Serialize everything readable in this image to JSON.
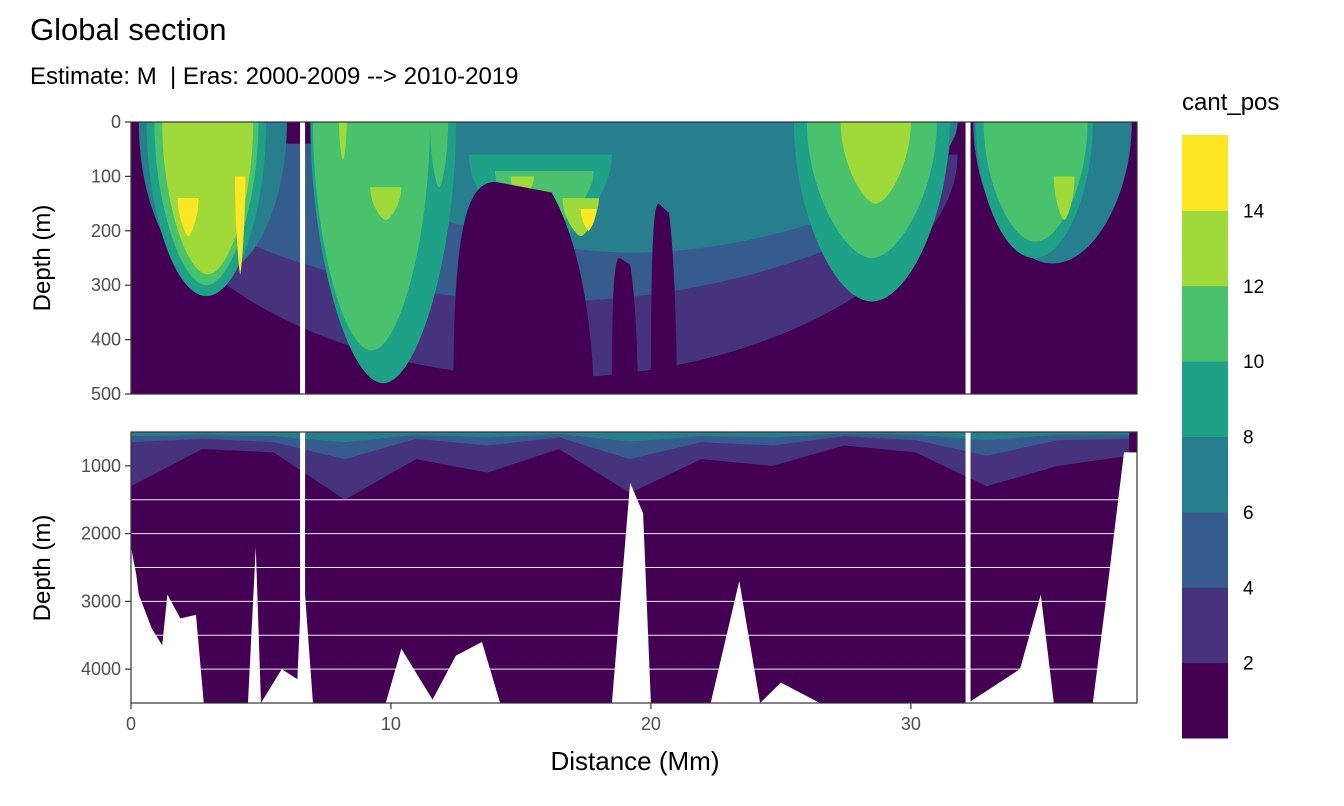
{
  "chart_data": {
    "type": "heatmap",
    "title": "Global section",
    "subtitle": "Estimate: M  | Eras: 2000-2009 --> 2010-2019",
    "xlabel": "Distance (Mm)",
    "xlim": [
      0,
      38.7
    ],
    "x_ticks": [
      0,
      10,
      20,
      30
    ],
    "x_tick_labels": [
      "0",
      "10",
      "20",
      "30"
    ],
    "panels": [
      {
        "name": "upper",
        "ylabel": "Depth (m)",
        "ylim": [
          0,
          500
        ],
        "y_ticks": [
          0,
          100,
          200,
          300,
          400,
          500
        ],
        "y_tick_labels": [
          "0",
          "100",
          "200",
          "300",
          "400",
          "500"
        ],
        "grid": false
      },
      {
        "name": "lower",
        "ylabel": "Depth (m)",
        "ylim": [
          500,
          4500
        ],
        "y_ticks": [
          1000,
          2000,
          3000,
          4000
        ],
        "y_tick_labels": [
          "1000",
          "2000",
          "3000",
          "4000"
        ],
        "grid": true
      }
    ],
    "legend": {
      "title": "cant_pos",
      "position": "right",
      "breaks": [
        2,
        4,
        6,
        8,
        10,
        12,
        14
      ],
      "break_labels": [
        "2",
        "4",
        "6",
        "8",
        "10",
        "12",
        "14"
      ],
      "bins": [
        {
          "from": 0,
          "to": 2,
          "color": "#440154"
        },
        {
          "from": 2,
          "to": 4,
          "color": "#46337E"
        },
        {
          "from": 4,
          "to": 6,
          "color": "#365C8D"
        },
        {
          "from": 6,
          "to": 8,
          "color": "#277F8E"
        },
        {
          "from": 8,
          "to": 10,
          "color": "#1FA187"
        },
        {
          "from": 10,
          "to": 12,
          "color": "#4AC16D"
        },
        {
          "from": 12,
          "to": 14,
          "color": "#9FDA3A"
        },
        {
          "from": 14,
          "to": 16,
          "color": "#FDE725"
        }
      ]
    },
    "gap_lines_distance_mm": [
      6.6,
      32.2
    ],
    "upper_field": {
      "background_bin": 0,
      "bodies": [
        {
          "bin": 1,
          "x": [
            0.4,
            31.8
          ],
          "top": 60,
          "bottom": 470,
          "extend": 0.9
        },
        {
          "bin": 2,
          "x": [
            0.4,
            31.5
          ],
          "top": 40,
          "bottom": 330,
          "extend": 0.8
        },
        {
          "bin": 3,
          "x": [
            0.3,
            6.0
          ],
          "top": 0,
          "bottom": 280,
          "extend": 1.0
        },
        {
          "bin": 3,
          "x": [
            6.9,
            31.8
          ],
          "top": 0,
          "bottom": 240,
          "extend": 0.7
        },
        {
          "bin": 3,
          "x": [
            32.4,
            38.5
          ],
          "top": 0,
          "bottom": 260,
          "extend": 0.9
        },
        {
          "bin": 4,
          "x": [
            0.6,
            5.2
          ],
          "top": 0,
          "bottom": 320,
          "extend": 0.9
        },
        {
          "bin": 4,
          "x": [
            6.9,
            12.5
          ],
          "top": 0,
          "bottom": 480,
          "extend": 0.8
        },
        {
          "bin": 4,
          "x": [
            13.0,
            18.5
          ],
          "top": 60,
          "bottom": 230,
          "extend": 0.5
        },
        {
          "bin": 4,
          "x": [
            25.5,
            31.5
          ],
          "top": 0,
          "bottom": 330,
          "extend": 0.8
        },
        {
          "bin": 4,
          "x": [
            32.5,
            37.0
          ],
          "top": 0,
          "bottom": 250,
          "extend": 0.9
        },
        {
          "bin": 5,
          "x": [
            0.9,
            4.9
          ],
          "top": 0,
          "bottom": 300,
          "extend": 0.8
        },
        {
          "bin": 5,
          "x": [
            7.0,
            11.5
          ],
          "top": 0,
          "bottom": 420,
          "extend": 0.8
        },
        {
          "bin": 5,
          "x": [
            11.5,
            12.2
          ],
          "top": 0,
          "bottom": 120,
          "extend": 0.6
        },
        {
          "bin": 5,
          "x": [
            14.0,
            17.8
          ],
          "top": 90,
          "bottom": 200,
          "extend": 0.4
        },
        {
          "bin": 5,
          "x": [
            26.0,
            31.0
          ],
          "top": 0,
          "bottom": 250,
          "extend": 0.7
        },
        {
          "bin": 5,
          "x": [
            32.8,
            36.8
          ],
          "top": 0,
          "bottom": 220,
          "extend": 0.8
        },
        {
          "bin": 6,
          "x": [
            1.2,
            4.7
          ],
          "top": 0,
          "bottom": 280,
          "extend": 0.8
        },
        {
          "bin": 6,
          "x": [
            8.0,
            8.3
          ],
          "top": 0,
          "bottom": 70,
          "extend": 0.6
        },
        {
          "bin": 6,
          "x": [
            9.2,
            10.4
          ],
          "top": 120,
          "bottom": 180,
          "extend": 0.5
        },
        {
          "bin": 6,
          "x": [
            14.6,
            15.5
          ],
          "top": 100,
          "bottom": 140,
          "extend": 0.4
        },
        {
          "bin": 6,
          "x": [
            16.6,
            18.0
          ],
          "top": 140,
          "bottom": 210,
          "extend": 0.4
        },
        {
          "bin": 6,
          "x": [
            27.3,
            30.0
          ],
          "top": 0,
          "bottom": 150,
          "extend": 0.6
        },
        {
          "bin": 6,
          "x": [
            35.5,
            36.3
          ],
          "top": 100,
          "bottom": 180,
          "extend": 0.5
        },
        {
          "bin": 7,
          "x": [
            1.8,
            2.6
          ],
          "top": 140,
          "bottom": 210,
          "extend": 0.4
        },
        {
          "bin": 7,
          "x": [
            4.0,
            4.4
          ],
          "top": 100,
          "bottom": 280,
          "extend": 0.3
        },
        {
          "bin": 7,
          "x": [
            17.3,
            17.9
          ],
          "top": 160,
          "bottom": 200,
          "extend": 0.3
        }
      ],
      "dark_columns": [
        {
          "x": [
            12.4,
            17.8
          ],
          "top": 110,
          "bottom": 500
        },
        {
          "x": [
            18.5,
            19.5
          ],
          "top": 250,
          "bottom": 500
        },
        {
          "x": [
            20.0,
            21.0
          ],
          "top": 150,
          "bottom": 500
        },
        {
          "x": [
            4.5,
            6.4
          ],
          "top": 380,
          "bottom": 500
        },
        {
          "x": [
            32.4,
            34.0
          ],
          "top": 270,
          "bottom": 500
        },
        {
          "x": [
            37.0,
            38.4
          ],
          "top": 260,
          "bottom": 500
        }
      ]
    },
    "lower_field": {
      "background_bin": 0,
      "shallow_bands": [
        {
          "bin": 1,
          "x": [
            0.0,
            38.4
          ],
          "bottom": [
            1300,
            750,
            800,
            1500,
            900,
            1100,
            750,
            1400,
            900,
            1000,
            700,
            800,
            1300,
            1000,
            850
          ]
        },
        {
          "bin": 2,
          "x": [
            0.0,
            38.4
          ],
          "bottom": [
            650,
            600,
            650,
            900,
            600,
            700,
            580,
            900,
            650,
            700,
            560,
            620,
            850,
            620,
            600
          ]
        },
        {
          "bin": 3,
          "x": [
            0.0,
            38.4
          ],
          "bottom": [
            560,
            540,
            560,
            650,
            540,
            580,
            530,
            640,
            560,
            580,
            520,
            540,
            620,
            540,
            540
          ]
        }
      ],
      "bottom_depth_mm_m": [
        [
          0.0,
          2200
        ],
        [
          0.2,
          2600
        ],
        [
          0.3,
          2900
        ],
        [
          0.8,
          3400
        ],
        [
          1.2,
          3650
        ],
        [
          1.4,
          2900
        ],
        [
          1.9,
          3250
        ],
        [
          2.5,
          3200
        ],
        [
          2.8,
          4500
        ],
        [
          4.5,
          4500
        ],
        [
          4.8,
          2200
        ],
        [
          5.0,
          4500
        ],
        [
          5.8,
          4000
        ],
        [
          6.4,
          4150
        ],
        [
          6.6,
          2400
        ],
        [
          7.0,
          4500
        ],
        [
          9.8,
          4500
        ],
        [
          10.4,
          3700
        ],
        [
          11.6,
          4450
        ],
        [
          12.5,
          3800
        ],
        [
          13.5,
          3600
        ],
        [
          14.2,
          4500
        ],
        [
          18.5,
          4500
        ],
        [
          19.2,
          1250
        ],
        [
          19.7,
          1700
        ],
        [
          20.0,
          4500
        ],
        [
          22.3,
          4500
        ],
        [
          23.4,
          2700
        ],
        [
          24.2,
          4500
        ],
        [
          25.0,
          4200
        ],
        [
          26.5,
          4500
        ],
        [
          28.0,
          4500
        ],
        [
          29.0,
          4500
        ],
        [
          30.5,
          4500
        ],
        [
          31.5,
          4500
        ],
        [
          32.2,
          4500
        ],
        [
          34.2,
          4000
        ],
        [
          35.0,
          2900
        ],
        [
          35.5,
          4500
        ],
        [
          37.0,
          4500
        ],
        [
          37.5,
          3000
        ],
        [
          38.2,
          800
        ],
        [
          38.7,
          800
        ]
      ]
    }
  }
}
